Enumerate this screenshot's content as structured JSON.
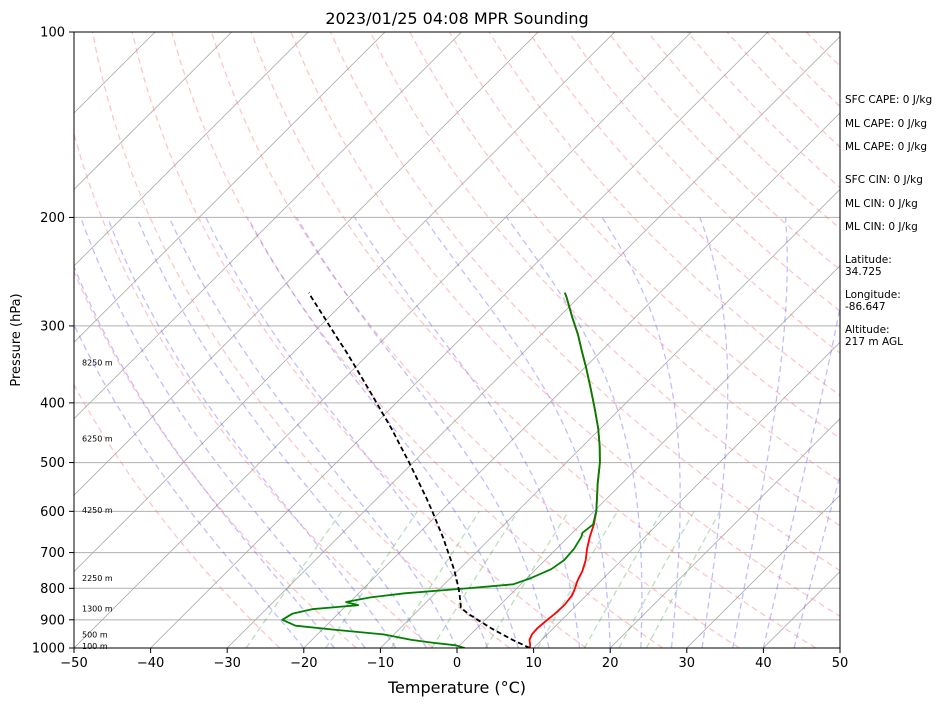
{
  "chart_data": {
    "type": "line",
    "title": "2023/01/25 04:08 MPR Sounding",
    "xlabel": "Temperature (°C)",
    "ylabel": "Pressure (hPa)",
    "xlim": [
      -50,
      50
    ],
    "ylim": [
      1000,
      100
    ],
    "y_scale": "log",
    "x_ticks": [
      -50,
      -40,
      -30,
      -20,
      -10,
      0,
      10,
      20,
      30,
      40,
      50
    ],
    "y_ticks": [
      100,
      200,
      300,
      400,
      500,
      600,
      700,
      800,
      900,
      1000
    ],
    "grid": "horizontal at pressure ticks",
    "skew_background": {
      "dry_adiabats": true,
      "moist_adiabats": true,
      "mixing_ratio_lines": true,
      "isotherms": true
    },
    "height_labels": [
      {
        "text": "100 m",
        "pressure": 993
      },
      {
        "text": "500 m",
        "pressure": 951
      },
      {
        "text": "1300 m",
        "pressure": 862
      },
      {
        "text": "2250 m",
        "pressure": 770
      },
      {
        "text": "4250 m",
        "pressure": 597
      },
      {
        "text": "6250 m",
        "pressure": 457
      },
      {
        "text": "8250 m",
        "pressure": 344
      }
    ],
    "series": [
      {
        "key": "temperature",
        "color": "#ff0000",
        "points": [
          [
            1000,
            9.5
          ],
          [
            990,
            9.2
          ],
          [
            970,
            8.4
          ],
          [
            950,
            8.0
          ],
          [
            930,
            7.9
          ],
          [
            900,
            8.1
          ],
          [
            880,
            8.3
          ],
          [
            850,
            8.4
          ],
          [
            820,
            8.1
          ],
          [
            800,
            7.6
          ],
          [
            780,
            7.0
          ],
          [
            750,
            6.3
          ],
          [
            720,
            5.3
          ],
          [
            690,
            4.0
          ],
          [
            660,
            2.8
          ],
          [
            630,
            1.7
          ],
          [
            600,
            0.3
          ],
          [
            570,
            -1.4
          ],
          [
            540,
            -3.2
          ],
          [
            500,
            -5.6
          ],
          [
            470,
            -7.8
          ],
          [
            440,
            -10.3
          ],
          [
            410,
            -13.2
          ],
          [
            380,
            -16.4
          ],
          [
            350,
            -19.9
          ],
          [
            330,
            -22.5
          ],
          [
            310,
            -25.2
          ],
          [
            290,
            -28.3
          ],
          [
            270,
            -31.5
          ],
          [
            265,
            -32.4
          ]
        ]
      },
      {
        "key": "dewpoint",
        "color": "#008000",
        "points": [
          [
            1000,
            1.0
          ],
          [
            990,
            -0.5
          ],
          [
            980,
            -4.0
          ],
          [
            970,
            -7.0
          ],
          [
            950,
            -11.5
          ],
          [
            935,
            -18.0
          ],
          [
            920,
            -24.0
          ],
          [
            900,
            -26.5
          ],
          [
            880,
            -26.0
          ],
          [
            865,
            -24.0
          ],
          [
            858,
            -21.0
          ],
          [
            852,
            -18.5
          ],
          [
            842,
            -20.5
          ],
          [
            828,
            -18.0
          ],
          [
            815,
            -14.0
          ],
          [
            805,
            -9.0
          ],
          [
            798,
            -5.5
          ],
          [
            788,
            -1.0
          ],
          [
            770,
            0.5
          ],
          [
            745,
            2.0
          ],
          [
            720,
            2.5
          ],
          [
            690,
            2.3
          ],
          [
            660,
            1.7
          ],
          [
            650,
            1.3
          ],
          [
            630,
            1.6
          ],
          [
            600,
            0.3
          ],
          [
            570,
            -1.4
          ],
          [
            540,
            -3.2
          ],
          [
            500,
            -5.6
          ],
          [
            470,
            -7.8
          ],
          [
            440,
            -10.3
          ],
          [
            410,
            -13.2
          ],
          [
            380,
            -16.4
          ],
          [
            350,
            -19.9
          ],
          [
            330,
            -22.5
          ],
          [
            310,
            -25.2
          ],
          [
            290,
            -28.3
          ],
          [
            270,
            -31.5
          ],
          [
            265,
            -32.4
          ]
        ]
      },
      {
        "key": "parcel",
        "color": "#000000",
        "dashed": true,
        "points": [
          [
            1000,
            9.5
          ],
          [
            990,
            8.4
          ],
          [
            970,
            6.2
          ],
          [
            950,
            4.1
          ],
          [
            930,
            2.0
          ],
          [
            900,
            -1.0
          ],
          [
            880,
            -3.0
          ],
          [
            860,
            -4.8
          ],
          [
            850,
            -5.2
          ],
          [
            820,
            -6.6
          ],
          [
            800,
            -7.6
          ],
          [
            780,
            -8.7
          ],
          [
            750,
            -10.4
          ],
          [
            720,
            -12.3
          ],
          [
            690,
            -14.3
          ],
          [
            660,
            -16.4
          ],
          [
            630,
            -18.7
          ],
          [
            600,
            -21.1
          ],
          [
            570,
            -23.7
          ],
          [
            540,
            -26.5
          ],
          [
            500,
            -30.5
          ],
          [
            470,
            -33.8
          ],
          [
            440,
            -37.3
          ],
          [
            410,
            -41.2
          ],
          [
            380,
            -45.4
          ],
          [
            350,
            -50.0
          ],
          [
            330,
            -53.3
          ],
          [
            310,
            -56.9
          ],
          [
            290,
            -60.7
          ],
          [
            270,
            -64.8
          ],
          [
            265,
            -65.8
          ]
        ]
      }
    ]
  },
  "side_panel": {
    "sfc_cape": "SFC CAPE: 0 J/kg",
    "ml_cape_1": "ML CAPE: 0 J/kg",
    "ml_cape_2": "ML CAPE: 0 J/kg",
    "sfc_cin": "SFC CIN: 0 J/kg",
    "ml_cin_1": "ML CIN: 0 J/kg",
    "ml_cin_2": "ML CIN: 0 J/kg",
    "latitude_label": "Latitude:",
    "latitude_value": "34.725",
    "longitude_label": "Longitude:",
    "longitude_value": "-86.647",
    "altitude_label": "Altitude:",
    "altitude_value": "217 m AGL"
  }
}
